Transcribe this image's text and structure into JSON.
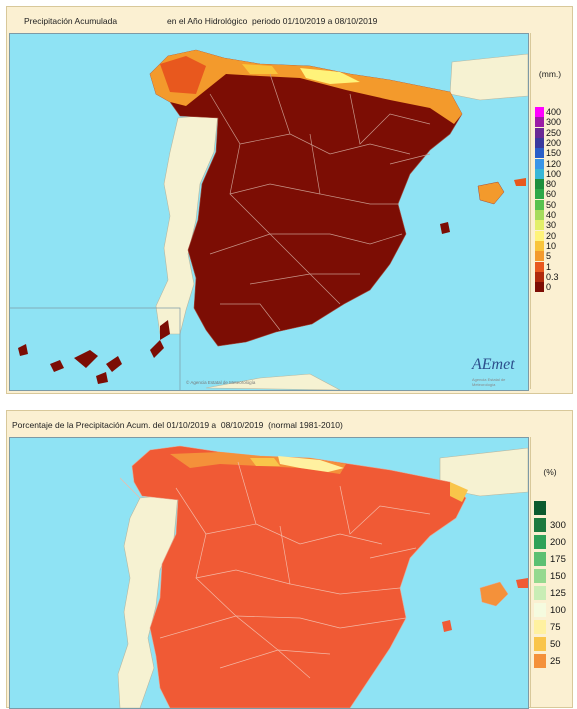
{
  "top_map": {
    "title_left": "Precipitación Acumulada",
    "title_right": "en el Año Hidrológico  periodo 01/10/2019 a 08/10/2019",
    "unit": "(mm.)",
    "legend": [
      {
        "label": "400",
        "color": "#ff00ff"
      },
      {
        "label": "300",
        "color": "#9b1ba6"
      },
      {
        "label": "250",
        "color": "#6a2a96"
      },
      {
        "label": "200",
        "color": "#3a3a9e"
      },
      {
        "label": "150",
        "color": "#2a5fc8"
      },
      {
        "label": "120",
        "color": "#3a96e8"
      },
      {
        "label": "100",
        "color": "#39b7d6"
      },
      {
        "label": "80",
        "color": "#1e8f3c"
      },
      {
        "label": "60",
        "color": "#2ea84a"
      },
      {
        "label": "50",
        "color": "#58c24e"
      },
      {
        "label": "40",
        "color": "#a6db5c"
      },
      {
        "label": "30",
        "color": "#e3ef6a"
      },
      {
        "label": "20",
        "color": "#fff37a"
      },
      {
        "label": "10",
        "color": "#f9c43a"
      },
      {
        "label": "5",
        "color": "#f39a2c"
      },
      {
        "label": "1",
        "color": "#e8581e"
      },
      {
        "label": "0.3",
        "color": "#b02a0c"
      },
      {
        "label": "0",
        "color": "#7c0d04"
      }
    ],
    "logo_text": "AEmet",
    "logo_sub": "Agencia Estatal de Meteorología",
    "copyright": "© Agencia Estatal de Meteorología"
  },
  "bottom_map": {
    "title": "Porcentaje de la Precipitación Acum. del 01/10/2019 a  08/10/2019  (normal 1981-2010)",
    "unit": "(%)",
    "legend": [
      {
        "label": "",
        "color": "#0b5a2e"
      },
      {
        "label": "300",
        "color": "#1d7a3f"
      },
      {
        "label": "200",
        "color": "#2fa258"
      },
      {
        "label": "175",
        "color": "#5cc072"
      },
      {
        "label": "150",
        "color": "#95d98f"
      },
      {
        "label": "125",
        "color": "#c9edb5"
      },
      {
        "label": "100",
        "color": "#f5fbdf"
      },
      {
        "label": "75",
        "color": "#fff1a0"
      },
      {
        "label": "50",
        "color": "#f9c54a"
      },
      {
        "label": "25",
        "color": "#f4913a"
      }
    ]
  },
  "colors": {
    "sea": "#8fe3f4",
    "dry_land": "#7c0d04",
    "orange_land": "#f05a35",
    "border_line": "#c8968a"
  }
}
